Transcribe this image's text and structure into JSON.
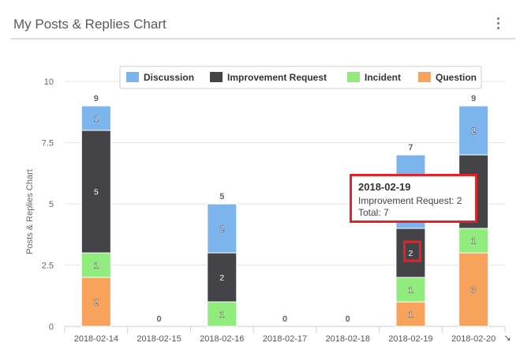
{
  "widget": {
    "title": "My Posts & Replies Chart",
    "menu_icon": "kebab-menu-icon"
  },
  "colors": {
    "Discussion": "#7cb5ec",
    "Improvement Request": "#434348",
    "Incident": "#90ed7d",
    "Question": "#f7a35c"
  },
  "chart_data": {
    "type": "bar",
    "stacked": true,
    "ylabel": "Posts & Replies Chart",
    "xlabel": "",
    "ylim": [
      0,
      10
    ],
    "yticks": [
      "0",
      "2.5",
      "5",
      "7.5",
      "10"
    ],
    "categories": [
      "2018-02-14",
      "2018-02-15",
      "2018-02-16",
      "2018-02-17",
      "2018-02-18",
      "2018-02-19",
      "2018-02-20"
    ],
    "legend_position": "top",
    "series": [
      {
        "name": "Question",
        "values": [
          2,
          0,
          0,
          0,
          0,
          1,
          3
        ]
      },
      {
        "name": "Incident",
        "values": [
          1,
          0,
          1,
          0,
          0,
          1,
          1
        ]
      },
      {
        "name": "Improvement Request",
        "values": [
          5,
          0,
          2,
          0,
          0,
          2,
          3
        ]
      },
      {
        "name": "Discussion",
        "values": [
          1,
          0,
          2,
          0,
          0,
          3,
          2
        ]
      }
    ],
    "legend_order": [
      "Discussion",
      "Improvement Request",
      "Incident",
      "Question"
    ],
    "totals": [
      9,
      0,
      5,
      0,
      0,
      7,
      9
    ],
    "grid": true
  },
  "tooltip": {
    "title": "2018-02-19",
    "line1": "Improvement Request: 2",
    "line2": "Total: 7"
  }
}
